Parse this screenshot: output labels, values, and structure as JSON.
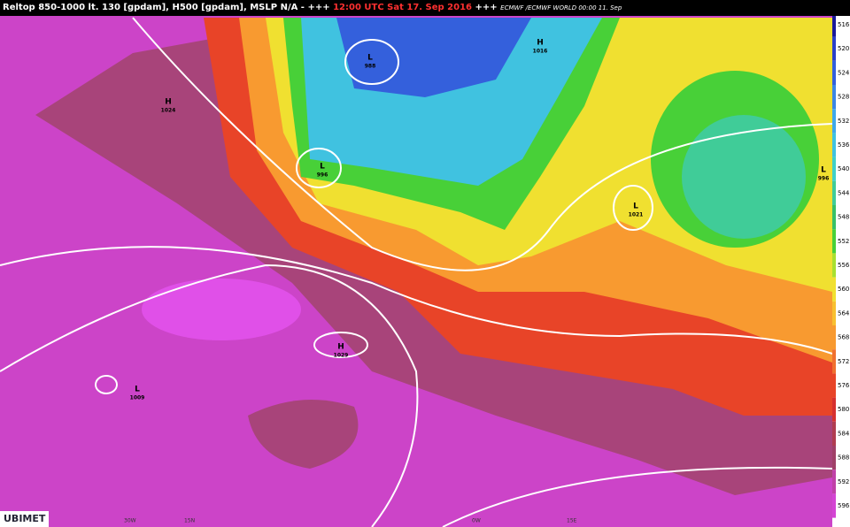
{
  "header": {
    "text": "Reltop 850-1000 lt. 130 [gpdam], H500 [gpdam], MSLP N/A - +++",
    "time": "12:00 UTC Sat 17. Sep 2016",
    "sep": "+++",
    "source": "ECMWF /ECMWF WORLD 00:00 11. Sep"
  },
  "colorbar": {
    "labels": [
      516,
      520,
      524,
      528,
      532,
      536,
      540,
      544,
      548,
      552,
      556,
      560,
      564,
      568,
      572,
      576,
      580,
      584,
      588,
      592,
      596
    ],
    "colors": [
      "#1a1a9a",
      "#2a40c8",
      "#3460dc",
      "#3c86e4",
      "#3ea8ea",
      "#40c2e0",
      "#40d0c8",
      "#40cc98",
      "#38c068",
      "#48d038",
      "#a8e030",
      "#f0e030",
      "#f8c030",
      "#f89a30",
      "#f07030",
      "#e84428",
      "#d63030",
      "#b03c50",
      "#a04068",
      "#c040a8",
      "#d444d4"
    ]
  },
  "pressure_centers": [
    {
      "kind": "H",
      "value": 1024
    },
    {
      "kind": "L",
      "value": 988
    },
    {
      "kind": "H",
      "value": 1016
    },
    {
      "kind": "L",
      "value": 996
    },
    {
      "kind": "L",
      "value": 1021
    },
    {
      "kind": "H",
      "value": 1029
    },
    {
      "kind": "L",
      "value": 1009
    },
    {
      "kind": "L",
      "value": 996
    }
  ],
  "axis_labels": [
    "30W",
    "15N",
    "0W",
    "15E"
  ],
  "logo": "UBIMET"
}
